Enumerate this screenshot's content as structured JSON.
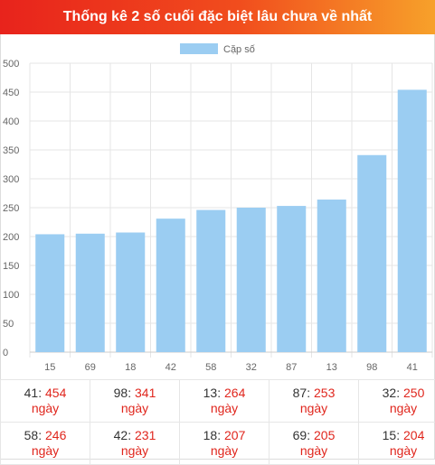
{
  "header": {
    "title": "Thống kê 2 số cuối đặc biệt lâu chưa về nhất"
  },
  "colors": {
    "bar": "#9bcdf2",
    "grid": "#e5e5e5",
    "accent": "#e0261d"
  },
  "chart_data": {
    "type": "bar",
    "title": "",
    "legend": {
      "position": "top",
      "entries": [
        "Cặp số"
      ]
    },
    "categories": [
      "15",
      "69",
      "18",
      "42",
      "58",
      "32",
      "87",
      "13",
      "98",
      "41"
    ],
    "series": [
      {
        "name": "Cặp số",
        "values": [
          204,
          205,
          207,
          231,
          246,
          250,
          253,
          264,
          341,
          454
        ]
      }
    ],
    "ylim": [
      0,
      500
    ],
    "yticks": [
      0,
      50,
      100,
      150,
      200,
      250,
      300,
      350,
      400,
      450,
      500
    ],
    "grid": true
  },
  "stats": [
    {
      "num": "41",
      "days": "454",
      "unit": "ngày"
    },
    {
      "num": "98",
      "days": "341",
      "unit": "ngày"
    },
    {
      "num": "13",
      "days": "264",
      "unit": "ngày"
    },
    {
      "num": "87",
      "days": "253",
      "unit": "ngày"
    },
    {
      "num": "32",
      "days": "250",
      "unit": "ngày"
    },
    {
      "num": "58",
      "days": "246",
      "unit": "ngày"
    },
    {
      "num": "42",
      "days": "231",
      "unit": "ngày"
    },
    {
      "num": "18",
      "days": "207",
      "unit": "ngày"
    },
    {
      "num": "69",
      "days": "205",
      "unit": "ngày"
    },
    {
      "num": "15",
      "days": "204",
      "unit": "ngày"
    }
  ]
}
